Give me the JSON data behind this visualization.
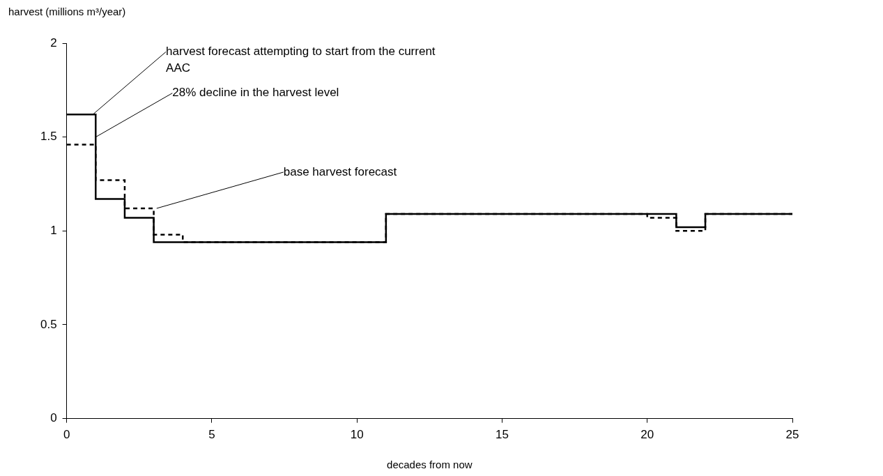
{
  "chart_data": {
    "type": "step",
    "xlabel": "decades from now",
    "ylabel": "harvest (millions m³/year)",
    "xlim": [
      0,
      25
    ],
    "xticks": [
      0,
      5,
      10,
      15,
      20,
      25
    ],
    "ylim": [
      0,
      2
    ],
    "yticks": [
      0,
      0.5,
      1,
      1.5,
      2
    ],
    "grid": false,
    "legend": false,
    "marker": "none",
    "series": [
      {
        "color": "#000000",
        "line_style": "solid",
        "x": [
          0,
          1,
          2,
          3,
          11,
          21,
          22,
          25
        ],
        "values": [
          1.62,
          1.17,
          1.07,
          0.94,
          1.09,
          1.02,
          1.09,
          1.09
        ]
      },
      {
        "color": "#000000",
        "line_style": "dashed",
        "x": [
          0,
          1,
          2,
          3,
          4,
          11,
          20,
          21,
          22,
          25
        ],
        "values": [
          1.46,
          1.27,
          1.12,
          0.98,
          0.94,
          1.09,
          1.07,
          1.0,
          1.09,
          1.09
        ]
      }
    ],
    "annotations": [
      {
        "text": "harvest forecast attempting to start from the current AAC",
        "x": 0.9,
        "y": 1.62
      },
      {
        "text": "28% decline in the harvest level",
        "x": 1,
        "y": 1.5
      },
      {
        "text": "base harvest forecast",
        "x": 3.1,
        "y": 1.12
      }
    ]
  }
}
